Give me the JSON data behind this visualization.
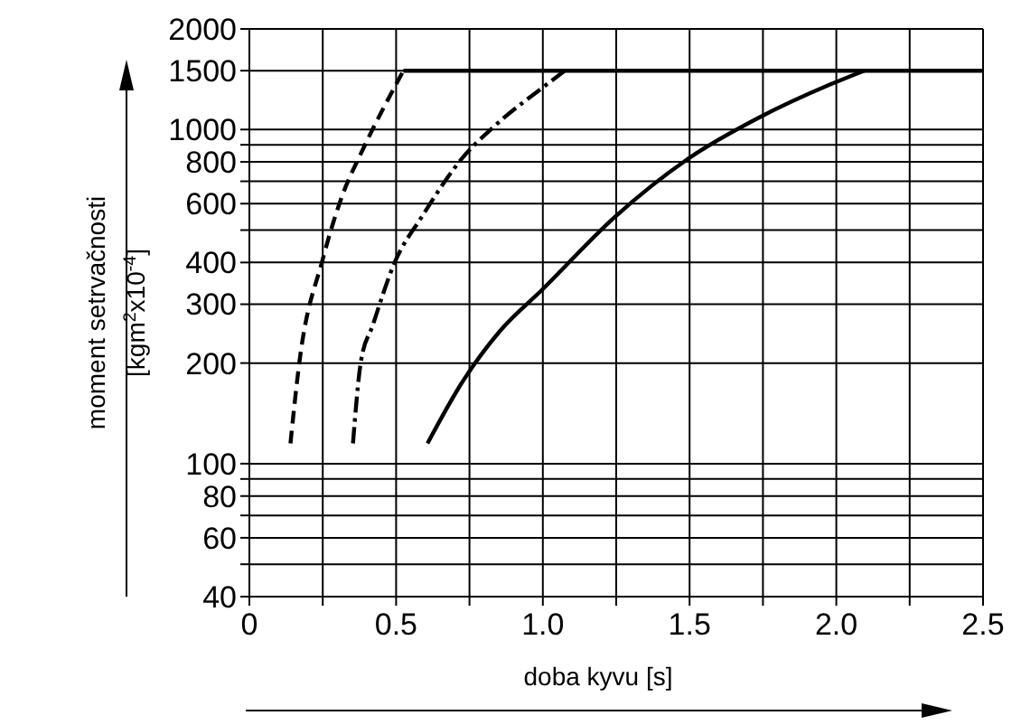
{
  "chart_data": {
    "type": "line",
    "xlabel": "doba kyvu [s]",
    "ylabel": "moment setrvačnosti\n[kgm$^{2}$x10$^{-4}$]",
    "log": "y",
    "grid": true,
    "marker": "none",
    "xlim": [
      0,
      2.5
    ],
    "ylim": [
      40,
      2000
    ],
    "xticks": [
      0,
      {
        "value": 0.25,
        "label": null
      },
      0.5,
      {
        "value": 0.75,
        "label": null
      },
      {
        "value": 1,
        "label": "1.0"
      },
      {
        "value": 1.25,
        "label": null
      },
      1.5,
      {
        "value": 1.75,
        "label": null
      },
      {
        "value": 2,
        "label": "2.0"
      },
      {
        "value": 2.25,
        "label": null
      },
      2.5
    ],
    "yticks": [
      40,
      {
        "value": 50,
        "label": null
      },
      60,
      {
        "value": 70,
        "label": null
      },
      80,
      {
        "value": 90,
        "label": null
      },
      100,
      200,
      300,
      400,
      {
        "value": 500,
        "label": null
      },
      600,
      {
        "value": 700,
        "label": null
      },
      800,
      {
        "value": 900,
        "label": null
      },
      1000,
      1500,
      2000
    ],
    "series": [
      {
        "color": "#000000",
        "line_style": "dashed",
        "x": [
          0.14,
          0.17,
          0.25,
          0.32,
          0.38,
          0.525
        ],
        "values": [
          115,
          200,
          409,
          646,
          847,
          1500
        ]
      },
      {
        "color": "#000000",
        "line_style": "dashdot",
        "x": [
          0.353,
          0.38,
          0.42,
          0.495,
          0.587,
          0.73,
          0.833,
          1.0,
          1.075
        ],
        "values": [
          115,
          202,
          259,
          400,
          547,
          830,
          1020,
          1337,
          1500
        ]
      },
      {
        "color": "#000000",
        "line_style": "solid",
        "x": [
          0.607,
          0.73,
          0.853,
          1.0,
          1.245,
          1.49,
          1.737,
          1.98,
          2.095
        ],
        "values": [
          115,
          178,
          249,
          333,
          547,
          812,
          1086,
          1365,
          1500
        ]
      },
      {
        "color": "#000000",
        "line_style": "solid",
        "x": [
          0.525,
          2.5
        ],
        "values": [
          1500,
          1500
        ]
      }
    ]
  }
}
